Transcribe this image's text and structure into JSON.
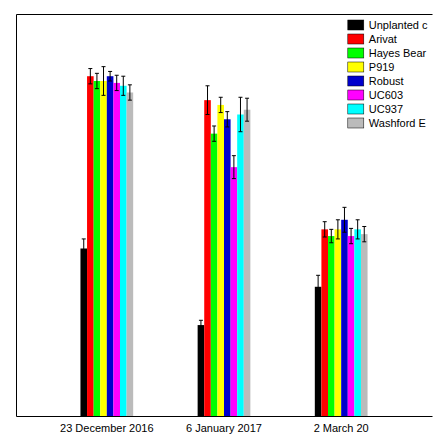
{
  "chart_data": {
    "type": "bar",
    "categories": [
      "23 December 2016",
      "6 January 2017",
      "2 March 20"
    ],
    "series": [
      {
        "name": "Unplanted c",
        "color": "#000000",
        "values": [
          0.175,
          0.095,
          0.135
        ],
        "errors": [
          0.01,
          0.005,
          0.012
        ]
      },
      {
        "name": "Arivat",
        "color": "#ff0000",
        "values": [
          0.355,
          0.33,
          0.195
        ],
        "errors": [
          0.008,
          0.015,
          0.008
        ]
      },
      {
        "name": "Hayes Bear",
        "color": "#00ff00",
        "values": [
          0.35,
          0.295,
          0.188
        ],
        "errors": [
          0.008,
          0.008,
          0.007
        ]
      },
      {
        "name": "P919",
        "color": "#ffff00",
        "values": [
          0.35,
          0.325,
          0.195
        ],
        "errors": [
          0.015,
          0.008,
          0.01
        ]
      },
      {
        "name": "Robust",
        "color": "#0000cc",
        "values": [
          0.355,
          0.31,
          0.205
        ],
        "errors": [
          0.005,
          0.008,
          0.013
        ]
      },
      {
        "name": "UC603",
        "color": "#ff00ff",
        "values": [
          0.348,
          0.26,
          0.188
        ],
        "errors": [
          0.008,
          0.012,
          0.008
        ]
      },
      {
        "name": "UC937",
        "color": "#00ffff",
        "values": [
          0.345,
          0.315,
          0.195
        ],
        "errors": [
          0.01,
          0.018,
          0.01
        ]
      },
      {
        "name": "Washford E",
        "color": "#bbbbbb",
        "values": [
          0.338,
          0.32,
          0.19
        ],
        "errors": [
          0.008,
          0.012,
          0.008
        ]
      }
    ],
    "ylim": [
      0,
      0.42
    ],
    "yticks": [],
    "tick_labels": "x",
    "grid": false,
    "legend": "upper right"
  }
}
